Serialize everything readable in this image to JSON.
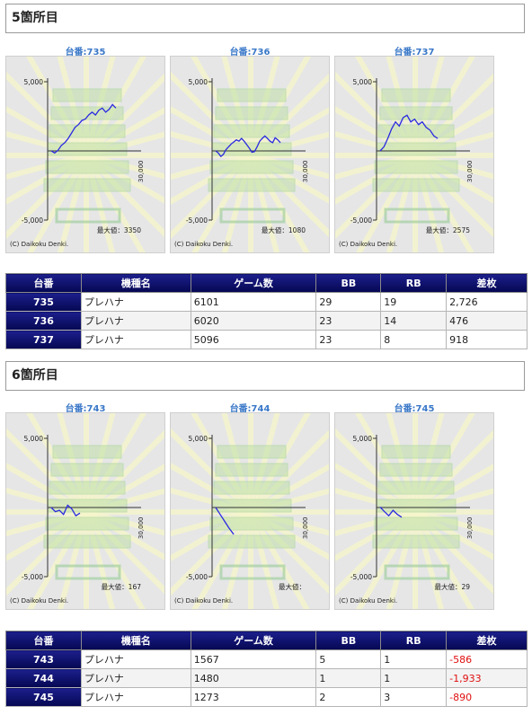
{
  "sections": [
    {
      "title": "5箇所目",
      "charts": [
        {
          "label": "台番:735",
          "max_label": "最大値：3350",
          "copyright": "(C) Daikoku Denki.",
          "y_top": "5,000",
          "y_bottom": "-5,000",
          "x_end": "30,000",
          "series": [
            0,
            -150,
            50,
            400,
            600,
            900,
            1300,
            1700,
            1900,
            2200,
            2300,
            2600,
            2800,
            2600,
            2950,
            3100,
            2800,
            3000,
            3350,
            3100
          ]
        },
        {
          "label": "台番:736",
          "max_label": "最大値：1080",
          "copyright": "(C) Daikoku Denki.",
          "y_top": "5,000",
          "y_bottom": "-5,000",
          "x_end": "30,000",
          "series": [
            0,
            -150,
            -400,
            -250,
            100,
            300,
            500,
            650,
            800,
            700,
            900,
            700,
            450,
            200,
            -100,
            -50,
            300,
            700,
            900,
            1080,
            900,
            700,
            600,
            950,
            800,
            600
          ]
        },
        {
          "label": "台番:737",
          "max_label": "最大値：2575",
          "copyright": "(C) Daikoku Denki.",
          "y_top": "5,000",
          "y_bottom": "-5,000",
          "x_end": "30,000",
          "series": [
            0,
            300,
            900,
            1600,
            2100,
            1800,
            2400,
            2575,
            2100,
            2300,
            1900,
            2100,
            1700,
            1500,
            1100,
            900
          ]
        }
      ],
      "table": {
        "headers": [
          "台番",
          "機種名",
          "ゲーム数",
          "BB",
          "RB",
          "差枚"
        ],
        "rows": [
          [
            "735",
            "プレハナ",
            "6101",
            "29",
            "19",
            "2,726"
          ],
          [
            "736",
            "プレハナ",
            "6020",
            "23",
            "14",
            "476"
          ],
          [
            "737",
            "プレハナ",
            "5096",
            "23",
            "8",
            "918"
          ]
        ]
      }
    },
    {
      "title": "6箇所目",
      "charts": [
        {
          "label": "台番:743",
          "max_label": "最大値：167",
          "copyright": "(C) Daikoku Denki.",
          "y_top": "5,000",
          "y_bottom": "-5,000",
          "x_end": "30,000",
          "series": [
            0,
            -300,
            -200,
            -500,
            167,
            -100,
            -600,
            -400
          ]
        },
        {
          "label": "台番:744",
          "max_label": "最大値：",
          "copyright": "(C) Daikoku Denki.",
          "y_top": "5,000",
          "y_bottom": "-5,000",
          "x_end": "30,000",
          "series": [
            0,
            -500,
            -1000,
            -1500,
            -1933
          ]
        },
        {
          "label": "台番:745",
          "max_label": "最大値：29",
          "copyright": "(C) Daikoku Denki.",
          "y_top": "5,000",
          "y_bottom": "-5,000",
          "x_end": "30,000",
          "series": [
            29,
            -300,
            -600,
            -200,
            -500,
            -700
          ]
        }
      ],
      "table": {
        "headers": [
          "台番",
          "機種名",
          "ゲーム数",
          "BB",
          "RB",
          "差枚"
        ],
        "rows": [
          [
            "743",
            "プレハナ",
            "1567",
            "5",
            "1",
            "-586"
          ],
          [
            "744",
            "プレハナ",
            "1480",
            "1",
            "1",
            "-1,933"
          ],
          [
            "745",
            "プレハナ",
            "1273",
            "2",
            "3",
            "-890"
          ]
        ]
      }
    }
  ],
  "colors": {
    "header_bg": "#0b0d6e",
    "line": "#2a2ae0",
    "negative": "#e01010",
    "link_label": "#3a78c8"
  }
}
